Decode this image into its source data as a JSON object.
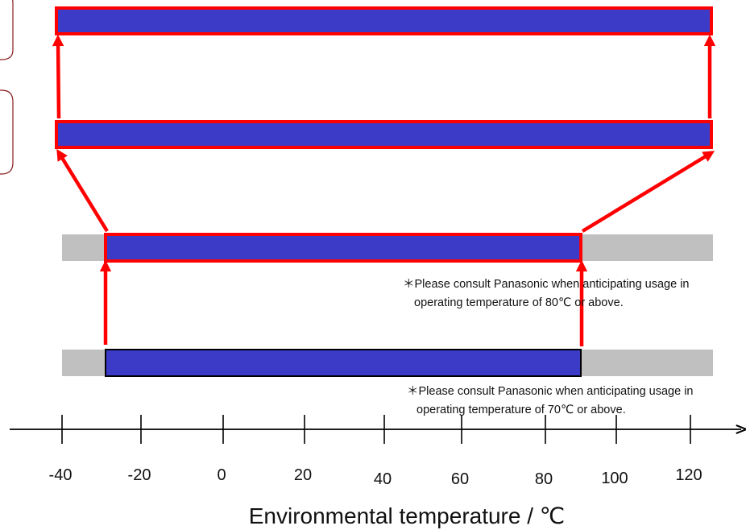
{
  "chart_data": {
    "type": "bar",
    "subtype": "range",
    "xlabel": "Environmental temperature / ℃",
    "x_ticks": [
      -40,
      -20,
      0,
      20,
      40,
      60,
      80,
      100,
      120
    ],
    "xlim": [
      -40,
      120
    ],
    "rows": [
      {
        "range": [
          -40,
          120
        ],
        "background_range": null,
        "outline": "red"
      },
      {
        "range": [
          -40,
          120
        ],
        "background_range": null,
        "outline": "red"
      },
      {
        "range": [
          -30,
          85
        ],
        "background_range": [
          -40,
          120
        ],
        "outline": "red"
      },
      {
        "range": [
          -30,
          85
        ],
        "background_range": [
          -40,
          120
        ],
        "outline": "black"
      }
    ],
    "notes": [
      {
        "line1": "＊Please consult Panasonic when anticipating usage in",
        "line2": "operating temperature of 80℃ or above."
      },
      {
        "line1": "＊Please consult Panasonic when anticipating usage in",
        "line2": "operating temperature of 70℃ or above."
      }
    ],
    "colors": {
      "bar": "#3b3bc8",
      "background": "#c0c0c0",
      "arrow": "#ff0000",
      "outline_red": "#ff0000",
      "outline_black": "#000000"
    }
  }
}
